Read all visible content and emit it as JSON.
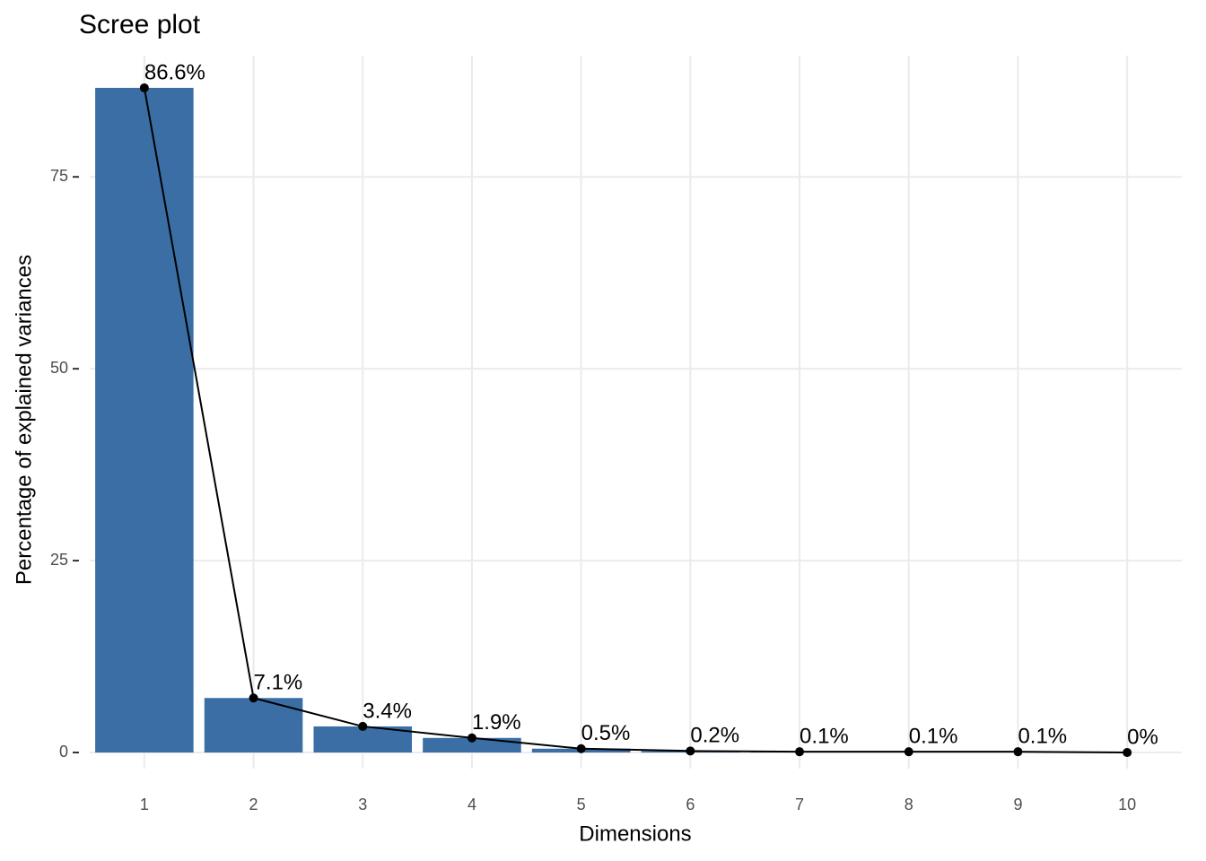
{
  "chart_data": {
    "type": "bar",
    "title": "Scree plot",
    "x_label": "Dimensions",
    "y_label": "Percentage of explained variances",
    "categories": [
      "1",
      "2",
      "3",
      "4",
      "5",
      "6",
      "7",
      "8",
      "9",
      "10"
    ],
    "values": [
      86.6,
      7.1,
      3.4,
      1.9,
      0.5,
      0.2,
      0.1,
      0.1,
      0.1,
      0
    ],
    "value_labels": [
      "86.6%",
      "7.1%",
      "3.4%",
      "1.9%",
      "0.5%",
      "0.2%",
      "0.1%",
      "0.1%",
      "0.1%",
      "0%"
    ],
    "color": "#3a6ea5",
    "line_color": "#000000",
    "ylim": [
      -2.1,
      90.8
    ],
    "yticks": [
      0,
      25,
      50,
      75
    ],
    "grid": true
  }
}
